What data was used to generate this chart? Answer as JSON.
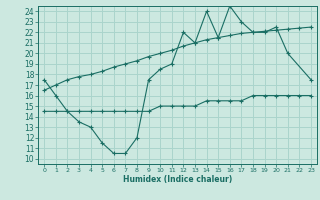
{
  "xlabel": "Humidex (Indice chaleur)",
  "bg_color": "#cce8e0",
  "grid_color": "#aad4cc",
  "line_color": "#1a6e64",
  "xlim": [
    -0.5,
    23.5
  ],
  "ylim": [
    9.5,
    24.5
  ],
  "xticks": [
    0,
    1,
    2,
    3,
    4,
    5,
    6,
    7,
    8,
    9,
    10,
    11,
    12,
    13,
    14,
    15,
    16,
    17,
    18,
    19,
    20,
    21,
    22,
    23
  ],
  "yticks": [
    10,
    11,
    12,
    13,
    14,
    15,
    16,
    17,
    18,
    19,
    20,
    21,
    22,
    23,
    24
  ],
  "line1_x": [
    0,
    1,
    2,
    3,
    4,
    5,
    6,
    7,
    8,
    9,
    10,
    11,
    12,
    13,
    14,
    15,
    16,
    17,
    18,
    19,
    20,
    21,
    23
  ],
  "line1_y": [
    17.5,
    16.0,
    14.5,
    13.5,
    13.0,
    11.5,
    10.5,
    10.5,
    12.0,
    17.5,
    18.5,
    19.0,
    22.0,
    21.0,
    24.0,
    21.5,
    24.5,
    23.0,
    22.0,
    22.0,
    22.5,
    20.0,
    17.5
  ],
  "line2_x": [
    0,
    1,
    2,
    3,
    4,
    5,
    6,
    7,
    8,
    9,
    10,
    11,
    12,
    13,
    14,
    15,
    16,
    17,
    18,
    19,
    20,
    21,
    22,
    23
  ],
  "line2_y": [
    14.5,
    14.5,
    14.5,
    14.5,
    14.5,
    14.5,
    14.5,
    14.5,
    14.5,
    14.5,
    15.0,
    15.0,
    15.0,
    15.0,
    15.5,
    15.5,
    15.5,
    15.5,
    16.0,
    16.0,
    16.0,
    16.0,
    16.0,
    16.0
  ],
  "line3_x": [
    0,
    1,
    2,
    3,
    4,
    5,
    6,
    7,
    8,
    9,
    10,
    11,
    12,
    13,
    14,
    15,
    16,
    17,
    18,
    19,
    20,
    21,
    22,
    23
  ],
  "line3_y": [
    16.5,
    17.0,
    17.5,
    17.8,
    18.0,
    18.3,
    18.7,
    19.0,
    19.3,
    19.7,
    20.0,
    20.3,
    20.7,
    21.0,
    21.3,
    21.5,
    21.7,
    21.9,
    22.0,
    22.1,
    22.2,
    22.3,
    22.4,
    22.5
  ]
}
